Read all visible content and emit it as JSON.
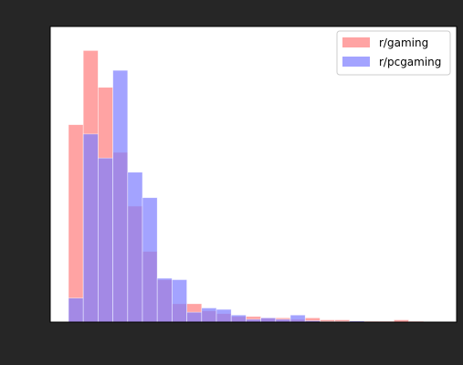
{
  "chart_data": {
    "type": "bar",
    "title": "",
    "xlabel": "",
    "ylabel": "",
    "xlim": [
      0,
      25
    ],
    "ylim": [
      0,
      100
    ],
    "grid": false,
    "legend_position": "top-right",
    "series": [
      {
        "name": "r/gaming",
        "color": "#ff7f7f",
        "opacity": 0.72,
        "bins": [
          0,
          1,
          2,
          3,
          4,
          5,
          6,
          7,
          8,
          9,
          10,
          11,
          12,
          13,
          14,
          15,
          16,
          17,
          18,
          19,
          20,
          21,
          22,
          23,
          24,
          25
        ],
        "values": [
          69.8,
          96.0,
          83.0,
          60.0,
          41.0,
          25.0,
          15.0,
          6.5,
          6.5,
          4.0,
          3.0,
          2.0,
          2.0,
          1.5,
          1.5,
          1.0,
          1.5,
          0.8,
          0.8,
          0.3,
          0.3,
          0.3,
          0.8,
          0.3,
          0.0
        ]
      },
      {
        "name": "r/pcgaming",
        "color": "#7f7fff",
        "opacity": 0.72,
        "bins": [
          0,
          1,
          2,
          3,
          4,
          5,
          6,
          7,
          8,
          9,
          10,
          11,
          12,
          13,
          14,
          15,
          16,
          17,
          18,
          19,
          20,
          21,
          22,
          23,
          24,
          25
        ],
        "values": [
          8.5,
          66.5,
          58.0,
          89.0,
          53.0,
          44.0,
          15.5,
          15.0,
          3.5,
          5.0,
          4.5,
          2.5,
          1.0,
          1.5,
          1.0,
          2.5,
          0.5,
          0.2,
          0.2,
          0.4,
          0.0,
          0.0,
          0.0,
          0.0,
          0.0
        ]
      }
    ]
  }
}
